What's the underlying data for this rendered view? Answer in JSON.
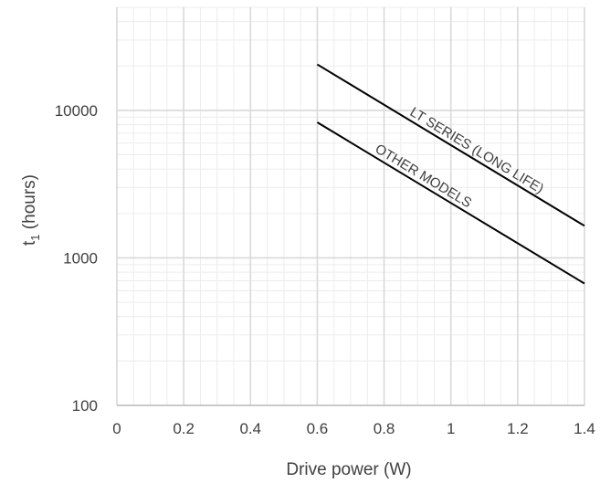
{
  "chart_data": {
    "type": "line",
    "xlabel": "Drive power (W)",
    "ylabel": {
      "main": "t",
      "sub": "1",
      "rest": " (hours)"
    },
    "xlim": [
      0,
      1.4
    ],
    "ylim": [
      100,
      50000
    ],
    "yscale": "log",
    "grid": true,
    "legend": "none",
    "x_ticks": [
      0,
      0.2,
      0.4,
      0.6,
      0.8,
      1,
      1.2,
      1.4
    ],
    "x_tick_labels": [
      "0",
      "0.2",
      "0.4",
      "0.6",
      "0.8",
      "1",
      "1.2",
      "1.4"
    ],
    "y_ticks": [
      100,
      1000,
      10000
    ],
    "y_tick_labels": [
      "100",
      "1000",
      "10000"
    ],
    "series": [
      {
        "name": "LT SERIES (LONG LIFE)",
        "x": [
          0.6,
          1.4
        ],
        "y": [
          20500,
          1650
        ]
      },
      {
        "name": "OTHER MODELS",
        "x": [
          0.6,
          1.4
        ],
        "y": [
          8300,
          670
        ]
      }
    ],
    "colors": {
      "line": "#000000",
      "grid_major": "#d9d9d9",
      "grid_minor": "#ececec",
      "text": "#404040"
    }
  }
}
